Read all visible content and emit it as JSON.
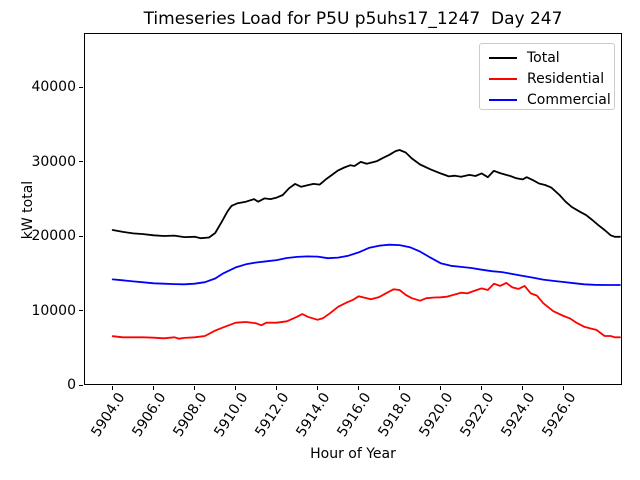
{
  "title": "Timeseries Load for P5U p5uhs17_1247  Day 247",
  "axes": {
    "xlabel": "Hour of Year",
    "ylabel": "kW total"
  },
  "legend": {
    "position": "upper right",
    "items": [
      {
        "label": "Total",
        "color": "#000000"
      },
      {
        "label": "Residential",
        "color": "#ff0000"
      },
      {
        "label": "Commercial",
        "color": "#0000ff"
      }
    ]
  },
  "chart_data": {
    "type": "line",
    "title": "Timeseries Load for P5U p5uhs17_1247  Day 247",
    "xlabel": "Hour of Year",
    "ylabel": "kW total",
    "xlim": [
      5902.6,
      5928.85
    ],
    "ylim": [
      0,
      47250
    ],
    "grid": false,
    "legend_position": "upper right",
    "x_ticks": [
      {
        "value": 5904,
        "label": "5904.0"
      },
      {
        "value": 5906,
        "label": "5906.0"
      },
      {
        "value": 5908,
        "label": "5908.0"
      },
      {
        "value": 5910,
        "label": "5910.0"
      },
      {
        "value": 5912,
        "label": "5912.0"
      },
      {
        "value": 5914,
        "label": "5914.0"
      },
      {
        "value": 5916,
        "label": "5916.0"
      },
      {
        "value": 5918,
        "label": "5918.0"
      },
      {
        "value": 5920,
        "label": "5920.0"
      },
      {
        "value": 5922,
        "label": "5922.0"
      },
      {
        "value": 5924,
        "label": "5924.0"
      },
      {
        "value": 5926,
        "label": "5926.0"
      }
    ],
    "y_ticks": [
      {
        "value": 0,
        "label": "0"
      },
      {
        "value": 10000,
        "label": "10000"
      },
      {
        "value": 20000,
        "label": "20000"
      },
      {
        "value": 30000,
        "label": "30000"
      },
      {
        "value": 40000,
        "label": "40000"
      }
    ],
    "series": [
      {
        "name": "Total",
        "color": "#000000",
        "points": [
          [
            5904.0,
            20800
          ],
          [
            5904.5,
            20550
          ],
          [
            5905.0,
            20350
          ],
          [
            5905.5,
            20250
          ],
          [
            5906.0,
            20100
          ],
          [
            5906.5,
            20000
          ],
          [
            5907.0,
            20050
          ],
          [
            5907.5,
            19850
          ],
          [
            5908.0,
            19900
          ],
          [
            5908.3,
            19700
          ],
          [
            5908.7,
            19800
          ],
          [
            5909.0,
            20400
          ],
          [
            5909.3,
            21800
          ],
          [
            5909.6,
            23300
          ],
          [
            5909.8,
            24050
          ],
          [
            5910.1,
            24400
          ],
          [
            5910.5,
            24600
          ],
          [
            5910.9,
            24950
          ],
          [
            5911.1,
            24600
          ],
          [
            5911.4,
            25050
          ],
          [
            5911.7,
            24950
          ],
          [
            5912.0,
            25150
          ],
          [
            5912.3,
            25500
          ],
          [
            5912.6,
            26400
          ],
          [
            5912.9,
            27000
          ],
          [
            5913.2,
            26600
          ],
          [
            5913.5,
            26800
          ],
          [
            5913.8,
            27000
          ],
          [
            5914.1,
            26900
          ],
          [
            5914.4,
            27600
          ],
          [
            5914.7,
            28200
          ],
          [
            5915.0,
            28800
          ],
          [
            5915.3,
            29200
          ],
          [
            5915.6,
            29500
          ],
          [
            5915.8,
            29400
          ],
          [
            5916.1,
            29950
          ],
          [
            5916.4,
            29700
          ],
          [
            5916.9,
            30050
          ],
          [
            5917.2,
            30500
          ],
          [
            5917.5,
            30900
          ],
          [
            5917.8,
            31400
          ],
          [
            5918.0,
            31550
          ],
          [
            5918.3,
            31200
          ],
          [
            5918.6,
            30400
          ],
          [
            5919.0,
            29600
          ],
          [
            5919.5,
            28950
          ],
          [
            5920.0,
            28400
          ],
          [
            5920.4,
            28000
          ],
          [
            5920.7,
            28100
          ],
          [
            5921.0,
            27950
          ],
          [
            5921.4,
            28200
          ],
          [
            5921.7,
            28050
          ],
          [
            5922.0,
            28400
          ],
          [
            5922.3,
            27900
          ],
          [
            5922.6,
            28750
          ],
          [
            5922.9,
            28450
          ],
          [
            5923.4,
            28050
          ],
          [
            5923.7,
            27750
          ],
          [
            5924.0,
            27600
          ],
          [
            5924.2,
            27900
          ],
          [
            5924.5,
            27500
          ],
          [
            5924.8,
            27050
          ],
          [
            5925.1,
            26850
          ],
          [
            5925.4,
            26500
          ],
          [
            5925.8,
            25500
          ],
          [
            5926.1,
            24600
          ],
          [
            5926.4,
            23900
          ],
          [
            5926.8,
            23250
          ],
          [
            5927.1,
            22800
          ],
          [
            5927.4,
            22150
          ],
          [
            5927.7,
            21450
          ],
          [
            5928.0,
            20800
          ],
          [
            5928.3,
            20100
          ],
          [
            5928.5,
            19900
          ],
          [
            5928.75,
            19900
          ]
        ]
      },
      {
        "name": "Residential",
        "color": "#ff0000",
        "points": [
          [
            5904.0,
            6550
          ],
          [
            5904.5,
            6400
          ],
          [
            5905.0,
            6400
          ],
          [
            5905.5,
            6400
          ],
          [
            5906.0,
            6350
          ],
          [
            5906.5,
            6270
          ],
          [
            5907.0,
            6400
          ],
          [
            5907.25,
            6220
          ],
          [
            5907.5,
            6320
          ],
          [
            5908.0,
            6400
          ],
          [
            5908.5,
            6580
          ],
          [
            5909.0,
            7300
          ],
          [
            5909.4,
            7750
          ],
          [
            5910.0,
            8360
          ],
          [
            5910.5,
            8450
          ],
          [
            5911.0,
            8280
          ],
          [
            5911.25,
            8010
          ],
          [
            5911.5,
            8360
          ],
          [
            5912.0,
            8360
          ],
          [
            5912.5,
            8550
          ],
          [
            5913.0,
            9170
          ],
          [
            5913.25,
            9530
          ],
          [
            5913.5,
            9170
          ],
          [
            5914.0,
            8750
          ],
          [
            5914.25,
            8950
          ],
          [
            5914.6,
            9620
          ],
          [
            5915.0,
            10500
          ],
          [
            5915.4,
            11050
          ],
          [
            5915.7,
            11400
          ],
          [
            5916.0,
            11900
          ],
          [
            5916.3,
            11700
          ],
          [
            5916.6,
            11500
          ],
          [
            5917.0,
            11800
          ],
          [
            5917.4,
            12400
          ],
          [
            5917.7,
            12840
          ],
          [
            5918.0,
            12750
          ],
          [
            5918.3,
            12100
          ],
          [
            5918.6,
            11650
          ],
          [
            5919.0,
            11320
          ],
          [
            5919.3,
            11650
          ],
          [
            5919.7,
            11750
          ],
          [
            5920.0,
            11770
          ],
          [
            5920.3,
            11850
          ],
          [
            5920.6,
            12080
          ],
          [
            5921.0,
            12390
          ],
          [
            5921.3,
            12300
          ],
          [
            5921.6,
            12610
          ],
          [
            5922.0,
            12970
          ],
          [
            5922.3,
            12750
          ],
          [
            5922.6,
            13600
          ],
          [
            5922.9,
            13300
          ],
          [
            5923.2,
            13700
          ],
          [
            5923.5,
            13100
          ],
          [
            5923.8,
            12900
          ],
          [
            5924.1,
            13300
          ],
          [
            5924.4,
            12300
          ],
          [
            5924.7,
            12000
          ],
          [
            5925.0,
            11000
          ],
          [
            5925.5,
            9900
          ],
          [
            5926.0,
            9260
          ],
          [
            5926.3,
            8950
          ],
          [
            5926.6,
            8400
          ],
          [
            5927.0,
            7820
          ],
          [
            5927.3,
            7600
          ],
          [
            5927.6,
            7400
          ],
          [
            5928.0,
            6580
          ],
          [
            5928.3,
            6580
          ],
          [
            5928.5,
            6400
          ],
          [
            5928.75,
            6400
          ]
        ]
      },
      {
        "name": "Commercial",
        "color": "#0000ff",
        "points": [
          [
            5904.0,
            14180
          ],
          [
            5904.5,
            14050
          ],
          [
            5905.0,
            13900
          ],
          [
            5905.5,
            13780
          ],
          [
            5906.0,
            13650
          ],
          [
            5906.5,
            13600
          ],
          [
            5907.0,
            13550
          ],
          [
            5907.5,
            13520
          ],
          [
            5908.0,
            13600
          ],
          [
            5908.5,
            13800
          ],
          [
            5909.0,
            14300
          ],
          [
            5909.4,
            15000
          ],
          [
            5910.0,
            15790
          ],
          [
            5910.5,
            16200
          ],
          [
            5911.0,
            16450
          ],
          [
            5911.5,
            16600
          ],
          [
            5912.0,
            16770
          ],
          [
            5912.5,
            17050
          ],
          [
            5913.0,
            17200
          ],
          [
            5913.5,
            17260
          ],
          [
            5914.0,
            17230
          ],
          [
            5914.5,
            17020
          ],
          [
            5915.0,
            17100
          ],
          [
            5915.5,
            17350
          ],
          [
            5916.0,
            17800
          ],
          [
            5916.5,
            18400
          ],
          [
            5917.0,
            18700
          ],
          [
            5917.5,
            18830
          ],
          [
            5918.0,
            18780
          ],
          [
            5918.5,
            18500
          ],
          [
            5919.0,
            17900
          ],
          [
            5919.5,
            17100
          ],
          [
            5920.0,
            16350
          ],
          [
            5920.5,
            16000
          ],
          [
            5921.0,
            15850
          ],
          [
            5921.5,
            15700
          ],
          [
            5922.0,
            15480
          ],
          [
            5922.5,
            15280
          ],
          [
            5923.0,
            15150
          ],
          [
            5923.5,
            14900
          ],
          [
            5924.0,
            14650
          ],
          [
            5924.5,
            14420
          ],
          [
            5925.0,
            14150
          ],
          [
            5925.5,
            13980
          ],
          [
            5926.0,
            13820
          ],
          [
            5926.5,
            13660
          ],
          [
            5927.0,
            13520
          ],
          [
            5927.5,
            13450
          ],
          [
            5928.0,
            13420
          ],
          [
            5928.5,
            13420
          ],
          [
            5928.75,
            13430
          ]
        ]
      }
    ]
  }
}
